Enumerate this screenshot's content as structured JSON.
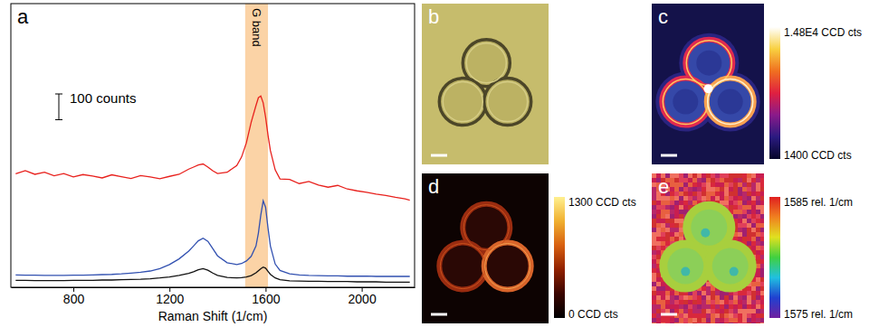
{
  "chart_data": {
    "type": "line",
    "title": "a",
    "x_label": "Raman Shift (1/cm)",
    "x": [
      560,
      600,
      640,
      680,
      720,
      760,
      800,
      840,
      880,
      920,
      960,
      1000,
      1040,
      1080,
      1120,
      1160,
      1200,
      1240,
      1280,
      1300,
      1320,
      1340,
      1360,
      1380,
      1400,
      1440,
      1480,
      1500,
      1520,
      1540,
      1560,
      1570,
      1580,
      1590,
      1600,
      1610,
      1620,
      1640,
      1660,
      1700,
      1740,
      1780,
      1820,
      1860,
      1900,
      1940,
      1980,
      2020,
      2060,
      2100,
      2140,
      2180,
      2200
    ],
    "series": [
      {
        "color": "#111111",
        "values": [
          27,
          27,
          26,
          26,
          26,
          26,
          27,
          27,
          27,
          28,
          28,
          29,
          30,
          31,
          33,
          36,
          40,
          46,
          54,
          60,
          68,
          72,
          66,
          55,
          46,
          38,
          36,
          37,
          40,
          45,
          56,
          64,
          72,
          78,
          74,
          62,
          50,
          36,
          29,
          25,
          24,
          23,
          23,
          22,
          22,
          22,
          21,
          21,
          21,
          20,
          20,
          20,
          20
        ]
      },
      {
        "color": "#3150b0",
        "values": [
          48,
          47,
          47,
          46,
          46,
          46,
          47,
          47,
          48,
          49,
          50,
          52,
          55,
          58,
          63,
          72,
          88,
          110,
          140,
          160,
          180,
          190,
          178,
          150,
          122,
          95,
          88,
          92,
          102,
          120,
          160,
          210,
          280,
          335,
          310,
          230,
          160,
          90,
          65,
          52,
          48,
          46,
          45,
          44,
          44,
          43,
          43,
          43,
          42,
          42,
          42,
          42,
          42
        ]
      },
      {
        "color": "#e8211d",
        "values": [
          440,
          452,
          438,
          446,
          432,
          441,
          428,
          437,
          431,
          424,
          436,
          429,
          422,
          433,
          428,
          421,
          430,
          438,
          458,
          466,
          474,
          478,
          466,
          452,
          441,
          446,
          472,
          505,
          560,
          640,
          705,
          735,
          742,
          715,
          660,
          590,
          530,
          455,
          420,
          418,
          402,
          410,
          396,
          388,
          395,
          381,
          374,
          368,
          361,
          356,
          349,
          343,
          338
        ]
      }
    ],
    "xlim": [
      540,
      2220
    ],
    "xticks": [
      800,
      1200,
      1600,
      2000
    ],
    "ylim": [
      0,
      1100
    ],
    "tick_labels": "x",
    "annotations": [
      {
        "text": "G band",
        "x_range": [
          1515,
          1610
        ]
      },
      {
        "text": "100 counts",
        "value": 100
      }
    ]
  },
  "panels": [
    {
      "label": "b"
    },
    {
      "label": "c",
      "colorbar": {
        "range": [
          1400,
          14800
        ],
        "ticks": [
          {
            "value": 1400,
            "label": "1400 CCD cts"
          },
          {
            "value": 14800,
            "label": "1.48E4 CCD cts"
          }
        ]
      }
    },
    {
      "label": "d",
      "colorbar": {
        "range": [
          0,
          1300
        ],
        "ticks": [
          {
            "value": 0,
            "label": "0 CCD cts"
          },
          {
            "value": 1300,
            "label": "1300 CCD cts"
          }
        ]
      }
    },
    {
      "label": "e",
      "colorbar": {
        "range": [
          1575,
          1585
        ],
        "ticks": [
          {
            "value": 1575,
            "label": "1575 rel. 1/cm"
          },
          {
            "value": 1585,
            "label": "1585 rel. 1/cm"
          }
        ]
      }
    }
  ]
}
